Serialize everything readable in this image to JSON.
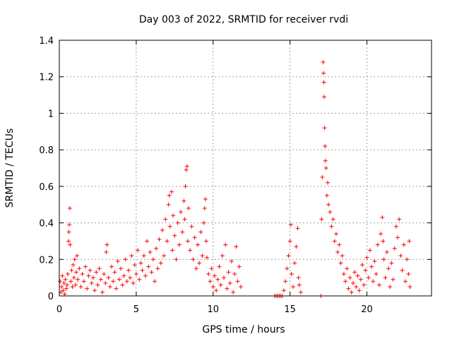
{
  "chart_data": {
    "type": "scatter",
    "title": "Day 003 of 2022, SRMTID for receiver rvdi",
    "xlabel": "GPS time / hours",
    "ylabel": "SRMTID / TECUs",
    "xlim": [
      0,
      24.2
    ],
    "ylim": [
      0,
      1.4
    ],
    "xticks": [
      0,
      5,
      10,
      15,
      20
    ],
    "yticks": [
      0,
      0.2,
      0.4,
      0.6,
      0.8,
      1,
      1.2,
      1.4
    ],
    "xtick_labels": [
      "0",
      "5",
      "10",
      "15",
      "20"
    ],
    "ytick_labels": [
      "0",
      "0.2",
      "0.4",
      "0.6",
      "0.8",
      "1",
      "1.2",
      "1.4"
    ],
    "grid": true,
    "marker": "+",
    "color": "#ff0000",
    "series": [
      {
        "name": "SRMTID",
        "points": [
          [
            0.05,
            0.08
          ],
          [
            0.1,
            0.02
          ],
          [
            0.15,
            0.05
          ],
          [
            0.2,
            0.11
          ],
          [
            0.25,
            0.03
          ],
          [
            0.3,
            0.07
          ],
          [
            0.35,
            0.01
          ],
          [
            0.4,
            0.09
          ],
          [
            0.45,
            0.04
          ],
          [
            0.5,
            0.06
          ],
          [
            0.55,
            0.12
          ],
          [
            0.6,
            0.3
          ],
          [
            0.62,
            0.35
          ],
          [
            0.65,
            0.39
          ],
          [
            0.68,
            0.48
          ],
          [
            0.7,
            0.28
          ],
          [
            0.75,
            0.08
          ],
          [
            0.8,
            0.14
          ],
          [
            0.85,
            0.05
          ],
          [
            0.9,
            0.17
          ],
          [
            0.95,
            0.1
          ],
          [
            1.0,
            0.2
          ],
          [
            1.05,
            0.06
          ],
          [
            1.1,
            0.13
          ],
          [
            1.15,
            0.22
          ],
          [
            1.2,
            0.09
          ],
          [
            1.3,
            0.15
          ],
          [
            1.4,
            0.05
          ],
          [
            1.5,
            0.12
          ],
          [
            1.6,
            0.08
          ],
          [
            1.7,
            0.16
          ],
          [
            1.8,
            0.04
          ],
          [
            1.9,
            0.11
          ],
          [
            2.0,
            0.14
          ],
          [
            2.1,
            0.07
          ],
          [
            2.2,
            0.1
          ],
          [
            2.3,
            0.03
          ],
          [
            2.4,
            0.13
          ],
          [
            2.5,
            0.06
          ],
          [
            2.6,
            0.15
          ],
          [
            2.7,
            0.09
          ],
          [
            2.8,
            0.02
          ],
          [
            2.9,
            0.12
          ],
          [
            3.0,
            0.07
          ],
          [
            3.05,
            0.24
          ],
          [
            3.1,
            0.28
          ],
          [
            3.2,
            0.1
          ],
          [
            3.3,
            0.05
          ],
          [
            3.4,
            0.16
          ],
          [
            3.5,
            0.08
          ],
          [
            3.6,
            0.13
          ],
          [
            3.7,
            0.04
          ],
          [
            3.8,
            0.19
          ],
          [
            3.9,
            0.09
          ],
          [
            4.0,
            0.15
          ],
          [
            4.1,
            0.06
          ],
          [
            4.2,
            0.11
          ],
          [
            4.3,
            0.2
          ],
          [
            4.4,
            0.08
          ],
          [
            4.5,
            0.14
          ],
          [
            4.6,
            0.1
          ],
          [
            4.7,
            0.22
          ],
          [
            4.8,
            0.07
          ],
          [
            4.9,
            0.17
          ],
          [
            5.0,
            0.12
          ],
          [
            5.1,
            0.25
          ],
          [
            5.2,
            0.09
          ],
          [
            5.3,
            0.18
          ],
          [
            5.4,
            0.14
          ],
          [
            5.5,
            0.22
          ],
          [
            5.6,
            0.11
          ],
          [
            5.7,
            0.3
          ],
          [
            5.8,
            0.16
          ],
          [
            5.9,
            0.24
          ],
          [
            6.0,
            0.13
          ],
          [
            6.1,
            0.2
          ],
          [
            6.2,
            0.08
          ],
          [
            6.3,
            0.26
          ],
          [
            6.4,
            0.15
          ],
          [
            6.5,
            0.31
          ],
          [
            6.6,
            0.18
          ],
          [
            6.7,
            0.36
          ],
          [
            6.8,
            0.22
          ],
          [
            6.9,
            0.42
          ],
          [
            7.0,
            0.3
          ],
          [
            7.1,
            0.5
          ],
          [
            7.15,
            0.55
          ],
          [
            7.2,
            0.38
          ],
          [
            7.3,
            0.57
          ],
          [
            7.35,
            0.25
          ],
          [
            7.4,
            0.44
          ],
          [
            7.5,
            0.33
          ],
          [
            7.6,
            0.2
          ],
          [
            7.7,
            0.4
          ],
          [
            7.8,
            0.28
          ],
          [
            7.9,
            0.46
          ],
          [
            8.0,
            0.35
          ],
          [
            8.1,
            0.52
          ],
          [
            8.15,
            0.42
          ],
          [
            8.2,
            0.6
          ],
          [
            8.25,
            0.69
          ],
          [
            8.3,
            0.71
          ],
          [
            8.35,
            0.3
          ],
          [
            8.4,
            0.48
          ],
          [
            8.5,
            0.25
          ],
          [
            8.6,
            0.38
          ],
          [
            8.7,
            0.2
          ],
          [
            8.8,
            0.32
          ],
          [
            8.9,
            0.15
          ],
          [
            9.0,
            0.28
          ],
          [
            9.1,
            0.18
          ],
          [
            9.2,
            0.35
          ],
          [
            9.3,
            0.22
          ],
          [
            9.4,
            0.4
          ],
          [
            9.45,
            0.48
          ],
          [
            9.5,
            0.53
          ],
          [
            9.55,
            0.3
          ],
          [
            9.6,
            0.21
          ],
          [
            9.7,
            0.12
          ],
          [
            9.8,
            0.08
          ],
          [
            9.9,
            0.15
          ],
          [
            10.0,
            0.05
          ],
          [
            10.1,
            0.11
          ],
          [
            10.2,
            0.03
          ],
          [
            10.3,
            0.09
          ],
          [
            10.4,
            0.16
          ],
          [
            10.5,
            0.06
          ],
          [
            10.6,
            0.22
          ],
          [
            10.7,
            0.1
          ],
          [
            10.8,
            0.28
          ],
          [
            10.9,
            0.04
          ],
          [
            11.0,
            0.13
          ],
          [
            11.1,
            0.07
          ],
          [
            11.2,
            0.19
          ],
          [
            11.3,
            0.02
          ],
          [
            11.4,
            0.12
          ],
          [
            11.5,
            0.27
          ],
          [
            11.6,
            0.08
          ],
          [
            11.7,
            0.16
          ],
          [
            11.8,
            0.05
          ],
          [
            14.0,
            0.0
          ],
          [
            14.1,
            0.0
          ],
          [
            14.2,
            0.0
          ],
          [
            14.3,
            0.0
          ],
          [
            14.4,
            0.0
          ],
          [
            14.5,
            0.0
          ],
          [
            14.6,
            0.03
          ],
          [
            14.7,
            0.08
          ],
          [
            14.8,
            0.15
          ],
          [
            14.9,
            0.22
          ],
          [
            15.0,
            0.3
          ],
          [
            15.05,
            0.39
          ],
          [
            15.1,
            0.12
          ],
          [
            15.2,
            0.05
          ],
          [
            15.3,
            0.18
          ],
          [
            15.4,
            0.27
          ],
          [
            15.5,
            0.37
          ],
          [
            15.55,
            0.1
          ],
          [
            15.6,
            0.06
          ],
          [
            15.7,
            0.02
          ],
          [
            17.0,
            0.0
          ],
          [
            17.05,
            0.42
          ],
          [
            17.1,
            0.65
          ],
          [
            17.15,
            1.28
          ],
          [
            17.18,
            1.22
          ],
          [
            17.2,
            1.17
          ],
          [
            17.22,
            1.09
          ],
          [
            17.25,
            0.92
          ],
          [
            17.28,
            0.82
          ],
          [
            17.3,
            0.74
          ],
          [
            17.35,
            0.7
          ],
          [
            17.4,
            0.55
          ],
          [
            17.45,
            0.62
          ],
          [
            17.5,
            0.5
          ],
          [
            17.6,
            0.46
          ],
          [
            17.7,
            0.38
          ],
          [
            17.8,
            0.42
          ],
          [
            17.9,
            0.3
          ],
          [
            18.0,
            0.34
          ],
          [
            18.1,
            0.24
          ],
          [
            18.2,
            0.28
          ],
          [
            18.3,
            0.18
          ],
          [
            18.4,
            0.22
          ],
          [
            18.5,
            0.12
          ],
          [
            18.6,
            0.08
          ],
          [
            18.7,
            0.15
          ],
          [
            18.8,
            0.04
          ],
          [
            18.9,
            0.1
          ],
          [
            19.0,
            0.02
          ],
          [
            19.1,
            0.07
          ],
          [
            19.2,
            0.13
          ],
          [
            19.3,
            0.05
          ],
          [
            19.4,
            0.11
          ],
          [
            19.5,
            0.03
          ],
          [
            19.6,
            0.09
          ],
          [
            19.7,
            0.17
          ],
          [
            19.8,
            0.06
          ],
          [
            19.9,
            0.14
          ],
          [
            20.0,
            0.21
          ],
          [
            20.1,
            0.1
          ],
          [
            20.2,
            0.25
          ],
          [
            20.3,
            0.16
          ],
          [
            20.4,
            0.08
          ],
          [
            20.5,
            0.19
          ],
          [
            20.6,
            0.12
          ],
          [
            20.7,
            0.28
          ],
          [
            20.8,
            0.06
          ],
          [
            20.9,
            0.34
          ],
          [
            21.0,
            0.43
          ],
          [
            21.05,
            0.3
          ],
          [
            21.1,
            0.2
          ],
          [
            21.2,
            0.1
          ],
          [
            21.3,
            0.24
          ],
          [
            21.4,
            0.15
          ],
          [
            21.5,
            0.05
          ],
          [
            21.6,
            0.18
          ],
          [
            21.7,
            0.09
          ],
          [
            21.8,
            0.26
          ],
          [
            21.9,
            0.38
          ],
          [
            22.0,
            0.32
          ],
          [
            22.1,
            0.42
          ],
          [
            22.2,
            0.22
          ],
          [
            22.3,
            0.14
          ],
          [
            22.4,
            0.28
          ],
          [
            22.5,
            0.08
          ],
          [
            22.6,
            0.2
          ],
          [
            22.7,
            0.12
          ],
          [
            22.75,
            0.3
          ],
          [
            22.8,
            0.05
          ]
        ]
      }
    ]
  }
}
